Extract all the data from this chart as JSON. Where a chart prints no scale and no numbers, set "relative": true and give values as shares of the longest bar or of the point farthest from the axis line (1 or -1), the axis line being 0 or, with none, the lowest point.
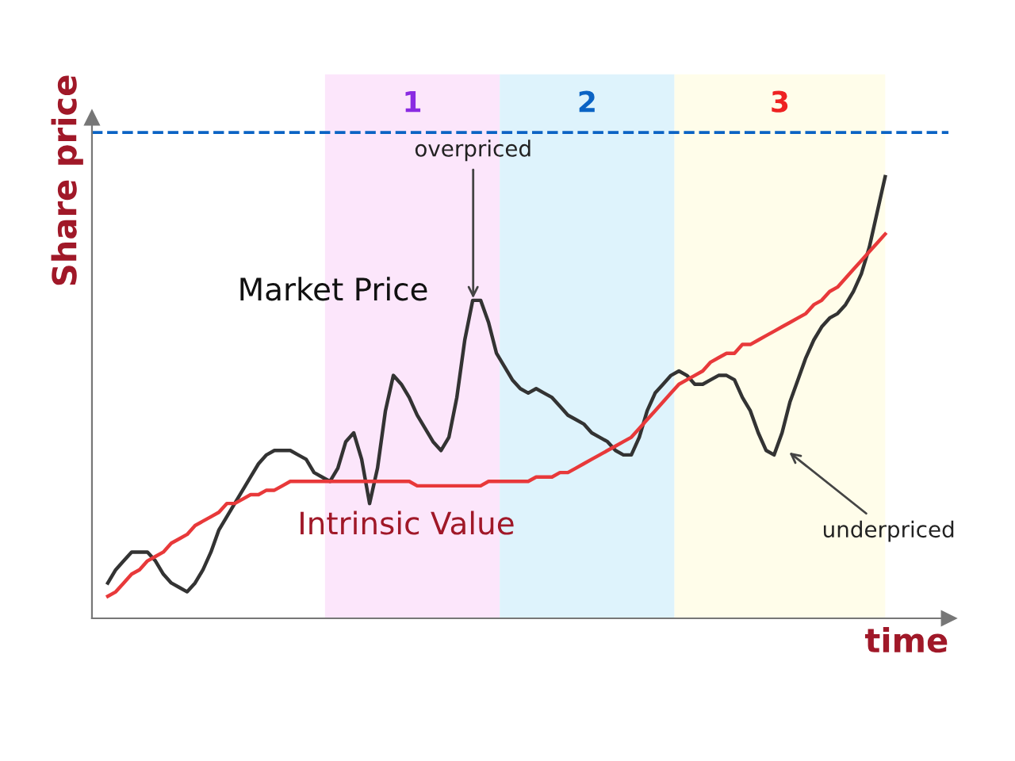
{
  "chart_data": {
    "type": "line",
    "relative": true,
    "xlabel": "time",
    "ylabel": "Share price",
    "categories": [
      null,
      null,
      null,
      null,
      null,
      null,
      null,
      null,
      null,
      null,
      null,
      null,
      null,
      null,
      null,
      null,
      null,
      null,
      null,
      null,
      null,
      null,
      null,
      null,
      null,
      null,
      null,
      null,
      null,
      null,
      null,
      null,
      null,
      null,
      null,
      null,
      null,
      null,
      null,
      null,
      null,
      null,
      null,
      null,
      null,
      null,
      null,
      null,
      null,
      null,
      null,
      null,
      null,
      null,
      null,
      null,
      null,
      null,
      null,
      null,
      null,
      null,
      null,
      null,
      null,
      null,
      null,
      null,
      null,
      null,
      null,
      null,
      null,
      null,
      null,
      null,
      null,
      null,
      null,
      null,
      null,
      null,
      null,
      null,
      null,
      null,
      null,
      null,
      null,
      null,
      null,
      null,
      null,
      null,
      null,
      null,
      null,
      null,
      null
    ],
    "series": [
      {
        "name": "Market Price",
        "color": "#333333",
        "values": [
          0.08,
          0.11,
          0.13,
          0.15,
          0.15,
          0.15,
          0.13,
          0.1,
          0.08,
          0.07,
          0.06,
          0.08,
          0.11,
          0.15,
          0.2,
          0.23,
          0.26,
          0.29,
          0.32,
          0.35,
          0.37,
          0.38,
          0.38,
          0.38,
          0.37,
          0.36,
          0.33,
          0.32,
          0.31,
          0.34,
          0.4,
          0.42,
          0.36,
          0.26,
          0.34,
          0.47,
          0.55,
          0.53,
          0.5,
          0.46,
          0.43,
          0.4,
          0.38,
          0.41,
          0.5,
          0.63,
          0.72,
          0.72,
          0.67,
          0.6,
          0.57,
          0.54,
          0.52,
          0.51,
          0.52,
          0.51,
          0.5,
          0.48,
          0.46,
          0.45,
          0.44,
          0.42,
          0.41,
          0.4,
          0.38,
          0.37,
          0.37,
          0.41,
          0.47,
          0.51,
          0.53,
          0.55,
          0.56,
          0.55,
          0.53,
          0.53,
          0.54,
          0.55,
          0.55,
          0.54,
          0.5,
          0.47,
          0.42,
          0.38,
          0.37,
          0.42,
          0.49,
          0.54,
          0.59,
          0.63,
          0.66,
          0.68,
          0.69,
          0.71,
          0.74,
          0.78,
          0.84,
          0.92,
          1.0
        ]
      },
      {
        "name": "Intrinsic Value",
        "color": "#e8393a",
        "values": [
          0.05,
          0.06,
          0.08,
          0.1,
          0.11,
          0.13,
          0.14,
          0.15,
          0.17,
          0.18,
          0.19,
          0.21,
          0.22,
          0.23,
          0.24,
          0.26,
          0.26,
          0.27,
          0.28,
          0.28,
          0.29,
          0.29,
          0.3,
          0.31,
          0.31,
          0.31,
          0.31,
          0.31,
          0.31,
          0.31,
          0.31,
          0.31,
          0.31,
          0.31,
          0.31,
          0.31,
          0.31,
          0.31,
          0.31,
          0.3,
          0.3,
          0.3,
          0.3,
          0.3,
          0.3,
          0.3,
          0.3,
          0.3,
          0.31,
          0.31,
          0.31,
          0.31,
          0.31,
          0.31,
          0.32,
          0.32,
          0.32,
          0.33,
          0.33,
          0.34,
          0.35,
          0.36,
          0.37,
          0.38,
          0.39,
          0.4,
          0.41,
          0.43,
          0.45,
          0.47,
          0.49,
          0.51,
          0.53,
          0.54,
          0.55,
          0.56,
          0.58,
          0.59,
          0.6,
          0.6,
          0.62,
          0.62,
          0.63,
          0.64,
          0.65,
          0.66,
          0.67,
          0.68,
          0.69,
          0.71,
          0.72,
          0.74,
          0.75,
          0.77,
          0.79,
          0.81,
          0.83,
          0.85,
          0.87
        ]
      }
    ],
    "ref_lines": [
      {
        "axis": "y",
        "value": 1.1,
        "color": "#0b63c4",
        "line_style": "dashed"
      }
    ],
    "annotations": [
      "1",
      "2",
      "3",
      "overpriced",
      "underpriced"
    ]
  }
}
